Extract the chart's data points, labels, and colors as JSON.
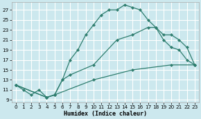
{
  "xlabel": "Humidex (Indice chaleur)",
  "bg_color": "#cce8ee",
  "grid_color": "#ffffff",
  "line_color": "#2e7d6e",
  "xlim": [
    -0.5,
    23.5
  ],
  "ylim": [
    8.5,
    28.5
  ],
  "yticks": [
    9,
    11,
    13,
    15,
    17,
    19,
    21,
    23,
    25,
    27
  ],
  "xticks": [
    0,
    1,
    2,
    3,
    4,
    5,
    6,
    7,
    8,
    9,
    10,
    11,
    12,
    13,
    14,
    15,
    16,
    17,
    18,
    19,
    20,
    21,
    22,
    23
  ],
  "line1_x": [
    0,
    1,
    2,
    3,
    4,
    5,
    6,
    7,
    8,
    9,
    10,
    11,
    12,
    13,
    14,
    15,
    16,
    17,
    18,
    19,
    20,
    21,
    22,
    23
  ],
  "line1_y": [
    12,
    11,
    10,
    11,
    9.5,
    10,
    13,
    17,
    19,
    22,
    24,
    26,
    27,
    27,
    28,
    27.5,
    27,
    25,
    23.5,
    21,
    19.5,
    19,
    17,
    16
  ],
  "line2_x": [
    0,
    4,
    5,
    6,
    7,
    10,
    13,
    15,
    17,
    18,
    19,
    20,
    21,
    22,
    23
  ],
  "line2_y": [
    12,
    9.5,
    10,
    13,
    14,
    16,
    21,
    22,
    23.5,
    23.5,
    22,
    22,
    21,
    19.5,
    16
  ],
  "line3_x": [
    0,
    4,
    5,
    10,
    15,
    20,
    23
  ],
  "line3_y": [
    12,
    9.5,
    10,
    13,
    15,
    16,
    16
  ]
}
